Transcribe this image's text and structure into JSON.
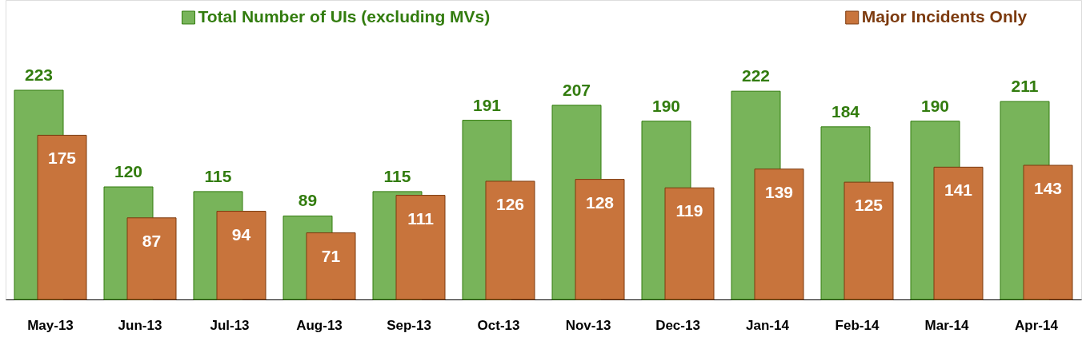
{
  "chart_data": {
    "type": "bar",
    "categories": [
      "May-13",
      "Jun-13",
      "Jul-13",
      "Aug-13",
      "Sep-13",
      "Oct-13",
      "Nov-13",
      "Dec-13",
      "Jan-14",
      "Feb-14",
      "Mar-14",
      "Apr-14"
    ],
    "series": [
      {
        "name": "Total Number of UIs (excluding MVs)",
        "color": "#78b45a",
        "values": [
          223,
          120,
          115,
          89,
          115,
          191,
          207,
          190,
          222,
          184,
          190,
          211
        ]
      },
      {
        "name": "Major Incidents Only",
        "color": "#c8743c",
        "values": [
          175,
          87,
          94,
          71,
          111,
          126,
          128,
          119,
          139,
          125,
          141,
          143
        ]
      }
    ],
    "data_labels": true,
    "legend": "top",
    "tick_labels": "x"
  }
}
